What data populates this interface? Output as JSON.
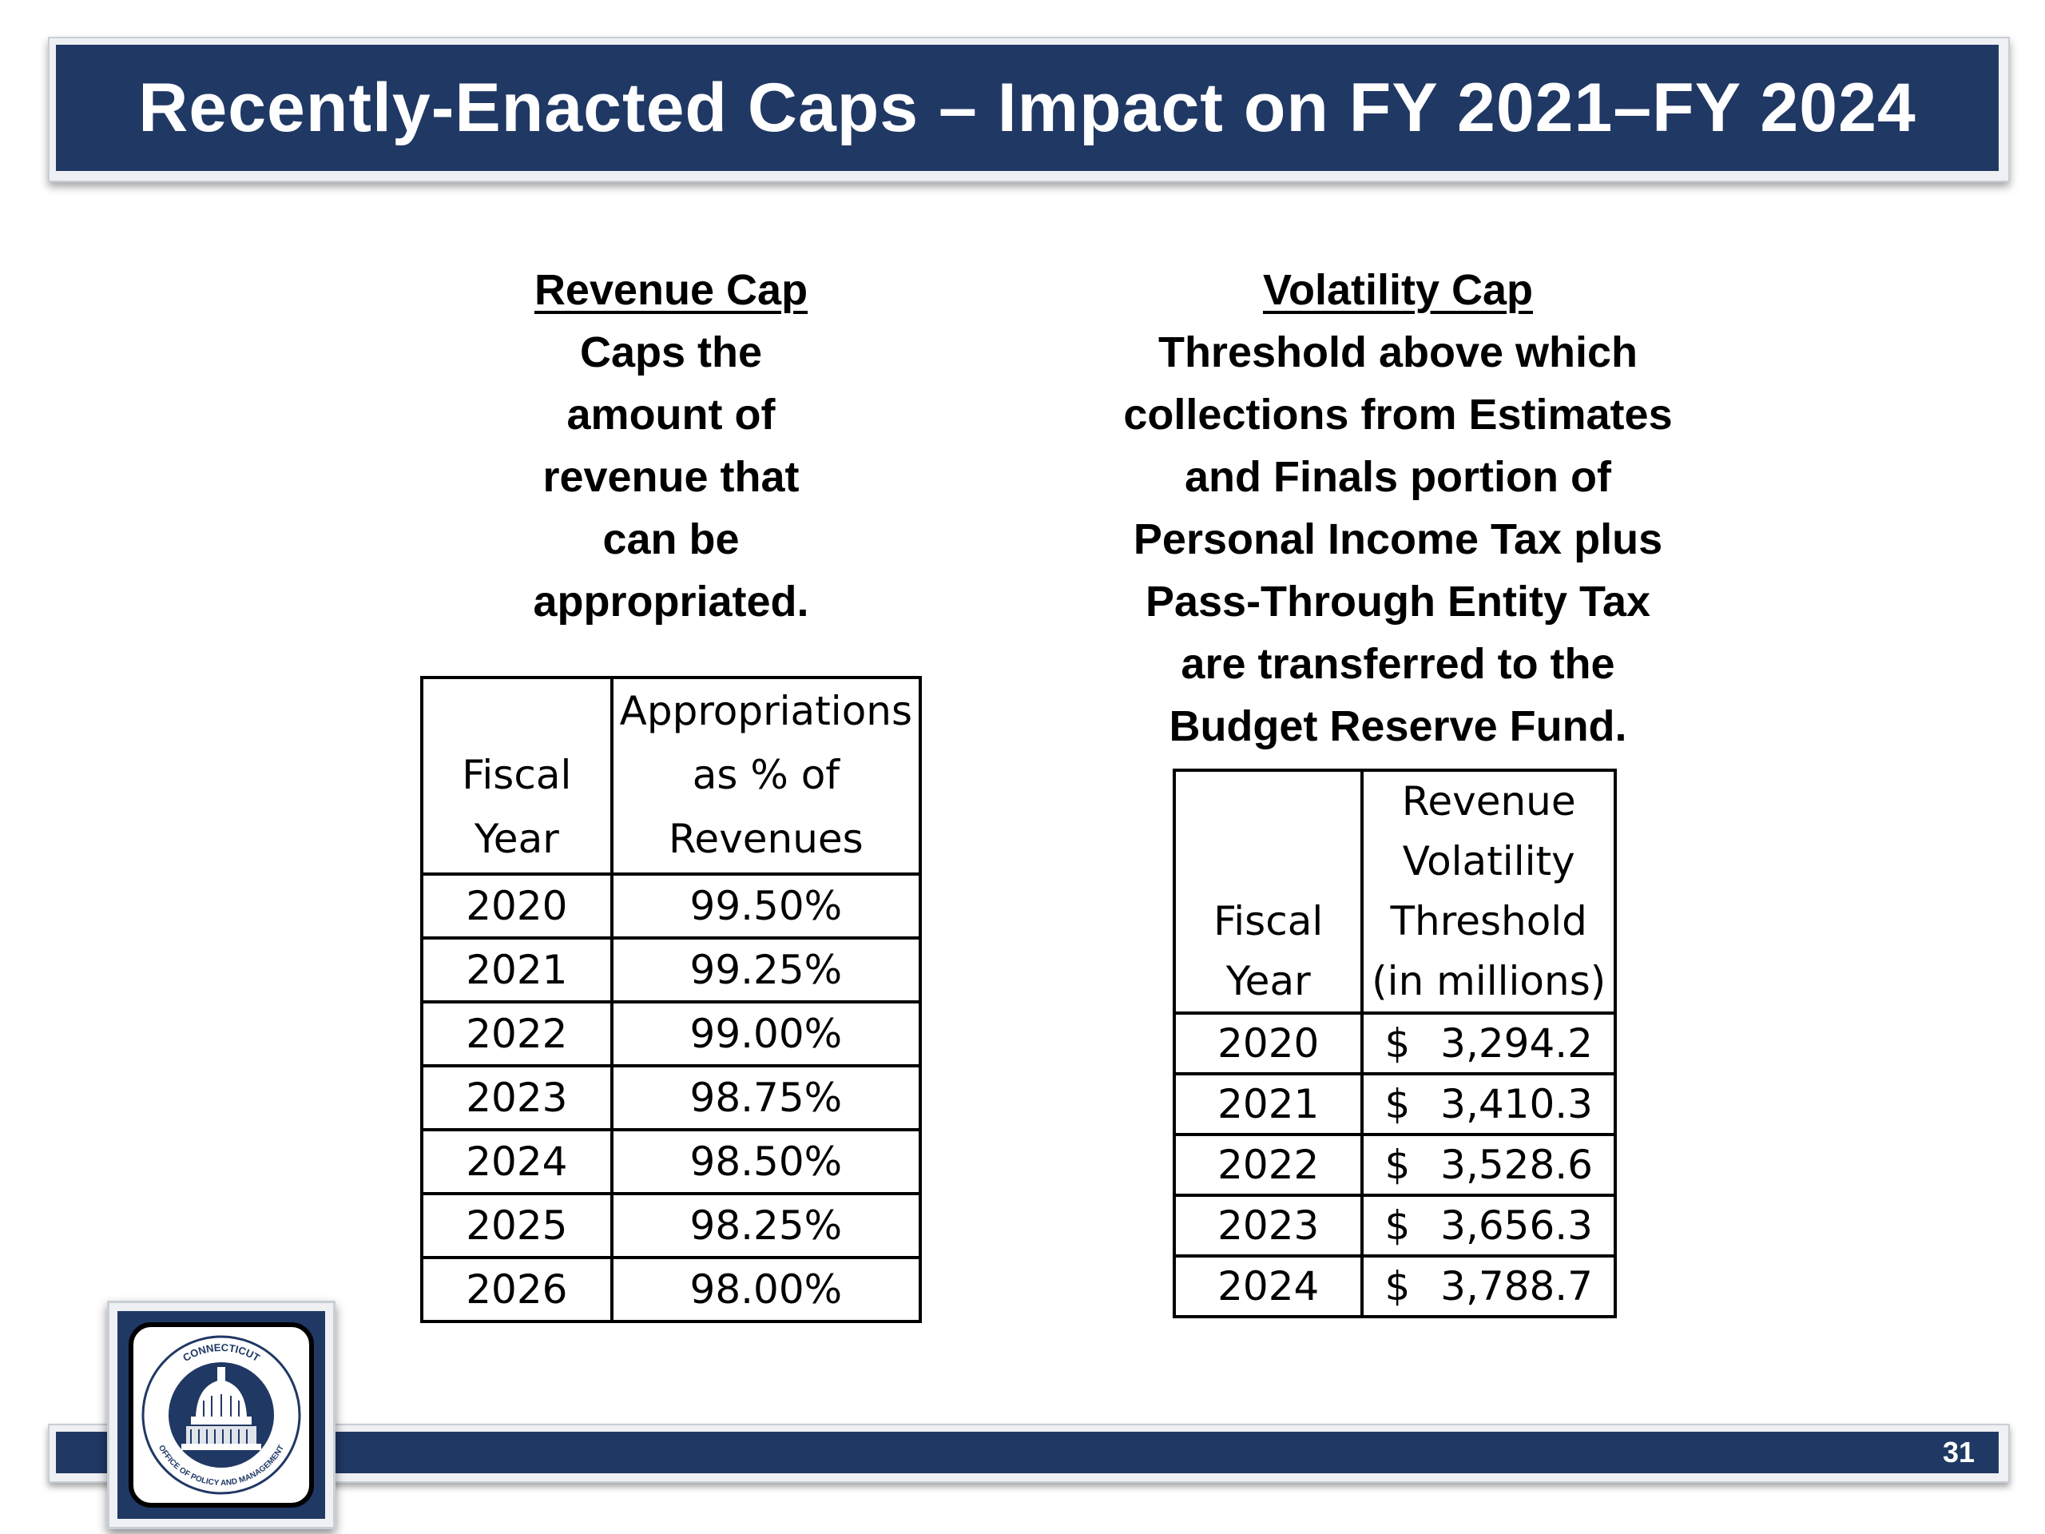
{
  "title": "Recently-Enacted Caps – Impact on FY 2021–FY 2024",
  "revenue_cap": {
    "heading": "Revenue Cap",
    "description_lines": [
      "Caps the",
      "amount of",
      "revenue that",
      "can be",
      "appropriated."
    ],
    "table": {
      "headers": [
        "Fiscal\nYear",
        "Appropriations\nas % of\nRevenues"
      ],
      "rows": [
        [
          "2020",
          "99.50%"
        ],
        [
          "2021",
          "99.25%"
        ],
        [
          "2022",
          "99.00%"
        ],
        [
          "2023",
          "98.75%"
        ],
        [
          "2024",
          "98.50%"
        ],
        [
          "2025",
          "98.25%"
        ],
        [
          "2026",
          "98.00%"
        ]
      ]
    }
  },
  "volatility_cap": {
    "heading": "Volatility Cap",
    "description_lines": [
      "Threshold above which",
      "collections from Estimates",
      "and Finals portion of",
      "Personal Income Tax plus",
      "Pass-Through Entity Tax",
      "are transferred to the",
      "Budget Reserve Fund."
    ],
    "table": {
      "headers": [
        "Fiscal\nYear",
        "Revenue\nVolatility\nThreshold\n(in millions)"
      ],
      "rows": [
        [
          "2020",
          "$",
          "3,294.2"
        ],
        [
          "2021",
          "$",
          "3,410.3"
        ],
        [
          "2022",
          "$",
          "3,528.6"
        ],
        [
          "2023",
          "$",
          "3,656.3"
        ],
        [
          "2024",
          "$",
          "3,788.7"
        ]
      ]
    }
  },
  "footer": {
    "page_number": "31"
  },
  "logo": {
    "text_top": "CONNECTICUT",
    "text_bottom": "OFFICE OF POLICY AND MANAGEMENT",
    "icon": "capitol-dome-seal"
  },
  "colors": {
    "navy": "#203864",
    "frame": "#eef0f3"
  }
}
